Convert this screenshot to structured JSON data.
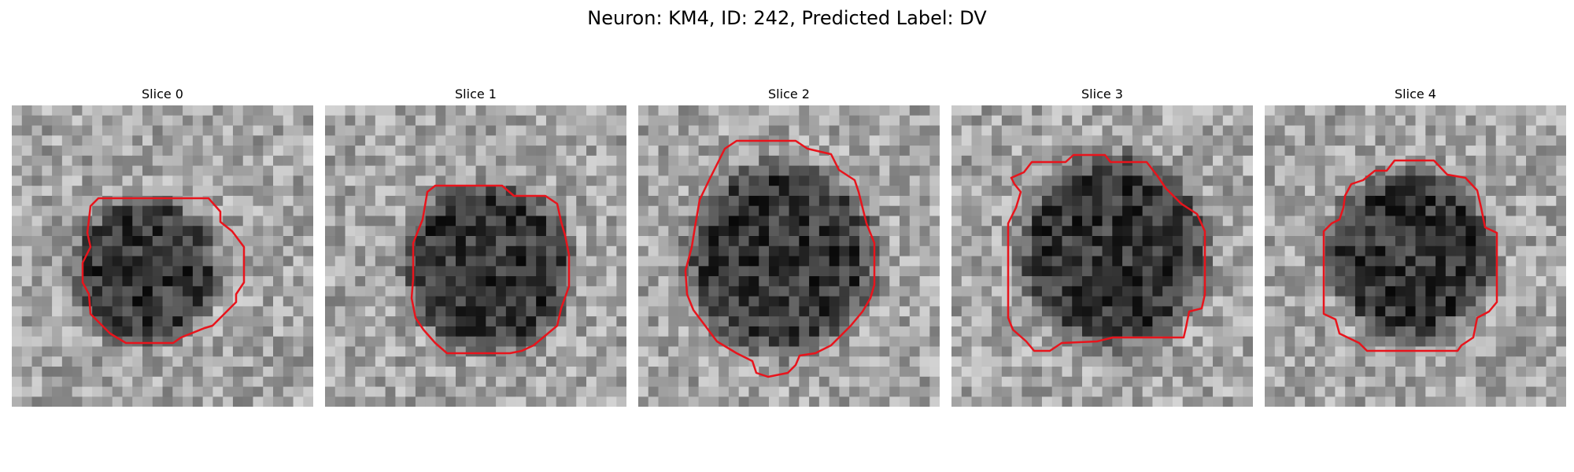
{
  "figure": {
    "title": "Neuron: KM4, ID: 242, Predicted Label: DV"
  },
  "colors": {
    "contour": "#e8141c",
    "background": "#ffffff"
  },
  "panels": [
    {
      "title": "Slice 0"
    },
    {
      "title": "Slice 1"
    },
    {
      "title": "Slice 2"
    },
    {
      "title": "Slice 3"
    },
    {
      "title": "Slice 4"
    }
  ]
}
